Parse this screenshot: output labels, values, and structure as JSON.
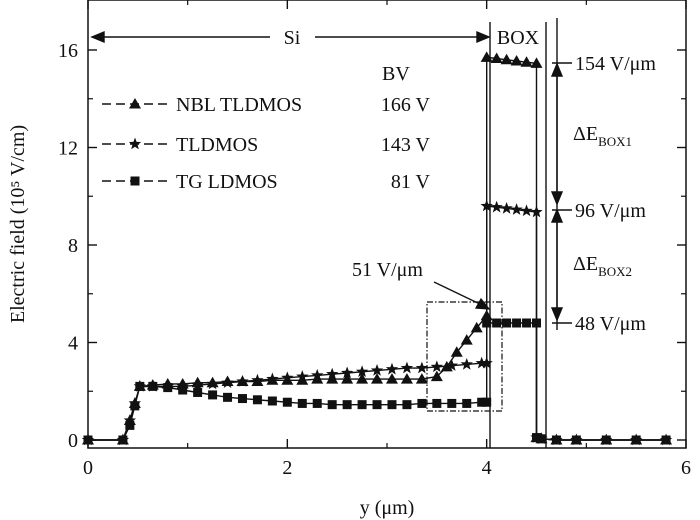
{
  "chart_data": {
    "type": "line",
    "xlabel": "y (μm)",
    "ylabel": "Electric field (10⁵ V/cm)",
    "xlim": [
      0,
      6
    ],
    "ylim": [
      -0.3,
      17.8
    ],
    "xticks": [
      0,
      2,
      4,
      6
    ],
    "yticks": [
      0,
      4,
      8,
      12,
      16
    ],
    "legend": {
      "placement": "top-left",
      "header": "BV",
      "entries": [
        {
          "name": "NBL TLDMOS",
          "bv": "166 V",
          "marker": "triangle"
        },
        {
          "name": "TLDMOS",
          "bv": "143 V",
          "marker": "star"
        },
        {
          "name": "TG LDMOS",
          "bv": "81 V",
          "marker": "square"
        }
      ]
    },
    "series": [
      {
        "name": "NBL TLDMOS",
        "marker": "triangle",
        "x": [
          0,
          0.35,
          0.42,
          0.47,
          0.52,
          0.65,
          0.8,
          0.95,
          1.1,
          1.25,
          1.4,
          1.55,
          1.7,
          1.85,
          2.0,
          2.15,
          2.3,
          2.45,
          2.6,
          2.75,
          2.9,
          3.05,
          3.2,
          3.35,
          3.5,
          3.6,
          3.7,
          3.8,
          3.9,
          4.0,
          4.0,
          4.1,
          4.2,
          4.3,
          4.4,
          4.5,
          4.5,
          4.55,
          4.7,
          4.9,
          5.2,
          5.5,
          5.8
        ],
        "y": [
          0,
          0,
          0.8,
          1.5,
          2.2,
          2.25,
          2.3,
          2.3,
          2.35,
          2.35,
          2.4,
          2.4,
          2.4,
          2.45,
          2.45,
          2.45,
          2.5,
          2.5,
          2.5,
          2.5,
          2.5,
          2.5,
          2.5,
          2.5,
          2.6,
          3.0,
          3.6,
          4.1,
          4.6,
          5.1,
          15.7,
          15.65,
          15.6,
          15.55,
          15.5,
          15.45,
          0.1,
          0.05,
          0,
          0,
          0,
          0,
          0
        ]
      },
      {
        "name": "TLDMOS",
        "marker": "star",
        "x": [
          0,
          0.35,
          0.42,
          0.47,
          0.52,
          0.65,
          0.8,
          0.95,
          1.1,
          1.25,
          1.4,
          1.55,
          1.7,
          1.85,
          2.0,
          2.15,
          2.3,
          2.45,
          2.6,
          2.75,
          2.9,
          3.05,
          3.2,
          3.35,
          3.5,
          3.65,
          3.8,
          3.95,
          4.0,
          4.0,
          4.1,
          4.2,
          4.3,
          4.4,
          4.5,
          4.5,
          4.55,
          4.7,
          4.9,
          5.2,
          5.5,
          5.8
        ],
        "y": [
          0,
          0,
          0.8,
          1.5,
          2.2,
          2.2,
          2.2,
          2.2,
          2.25,
          2.3,
          2.35,
          2.4,
          2.45,
          2.5,
          2.55,
          2.6,
          2.65,
          2.7,
          2.75,
          2.8,
          2.85,
          2.9,
          2.95,
          2.95,
          3.0,
          3.05,
          3.1,
          3.15,
          3.15,
          9.6,
          9.55,
          9.5,
          9.45,
          9.4,
          9.35,
          0.1,
          0.05,
          0,
          0,
          0,
          0,
          0
        ]
      },
      {
        "name": "TG LDMOS",
        "marker": "square",
        "x": [
          0,
          0.35,
          0.42,
          0.47,
          0.52,
          0.65,
          0.8,
          0.95,
          1.1,
          1.25,
          1.4,
          1.55,
          1.7,
          1.85,
          2.0,
          2.15,
          2.3,
          2.45,
          2.6,
          2.75,
          2.9,
          3.05,
          3.2,
          3.35,
          3.5,
          3.65,
          3.8,
          3.95,
          4.0,
          4.0,
          4.1,
          4.2,
          4.3,
          4.4,
          4.5,
          4.5,
          4.55,
          4.7,
          4.9,
          5.2,
          5.5,
          5.8
        ],
        "y": [
          0,
          0,
          0.6,
          1.4,
          2.2,
          2.2,
          2.15,
          2.05,
          1.95,
          1.85,
          1.75,
          1.7,
          1.65,
          1.6,
          1.55,
          1.5,
          1.5,
          1.45,
          1.45,
          1.45,
          1.45,
          1.45,
          1.45,
          1.5,
          1.5,
          1.5,
          1.5,
          1.55,
          1.55,
          4.8,
          4.8,
          4.8,
          4.8,
          4.8,
          4.8,
          0.1,
          0.05,
          0,
          0,
          0,
          0,
          0
        ]
      }
    ],
    "annotations": {
      "si_label": "Si",
      "box_label": "BOX",
      "v154": "154 V/μm",
      "v96": "96 V/μm",
      "v48": "48 V/μm",
      "v51": "51 V/μm",
      "dE1_main": "ΔE",
      "dE1_sub": "BOX1",
      "dE2_main": "ΔE",
      "dE2_sub": "BOX2"
    }
  }
}
